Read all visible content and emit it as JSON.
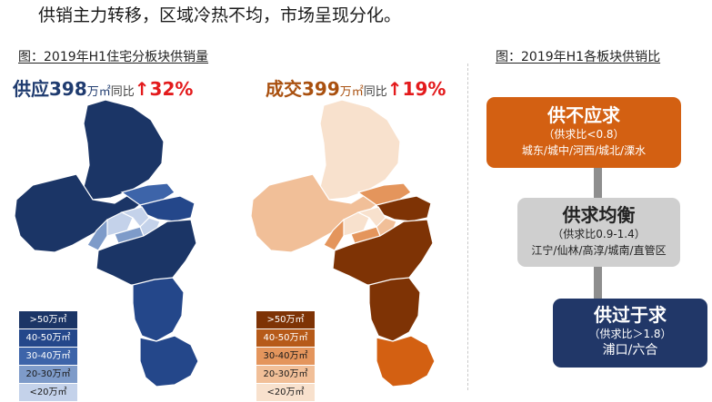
{
  "headline": "供销主力转移，区域冷热不均，市场呈现分化。",
  "figure_left_title": "图：2019年H1住宅分板块供销量",
  "figure_right_title": "图：2019年H1各板块供销比",
  "supply_stat": {
    "label": "供应",
    "value": "398",
    "unit": "万㎡",
    "yoy_label": "同比",
    "arrow": "↑",
    "pct": "32%"
  },
  "deal_stat": {
    "label": "成交",
    "value": "399",
    "unit": "万㎡",
    "yoy_label": "同比",
    "arrow": "↑",
    "pct": "19%"
  },
  "legend_labels": [
    ">50万㎡",
    "40-50万㎡",
    "30-40万㎡",
    "20-30万㎡",
    "<20万㎡"
  ],
  "legend_blue_colors": [
    "#1b3566",
    "#24478a",
    "#3d64a9",
    "#7e9bc9",
    "#c4d2ea"
  ],
  "legend_brown_colors": [
    "#7e3305",
    "#b65a19",
    "#e4955c",
    "#f1bf98",
    "#f8e1cd"
  ],
  "boxes": {
    "undersupply": {
      "title": "供不应求",
      "ratio": "（供求比<0.8）",
      "districts": "城东/城中/河西/城北/溧水",
      "color": "#d36012"
    },
    "balanced": {
      "title": "供求均衡",
      "ratio": "（供求比0.9-1.4）",
      "districts": "江宁/仙林/高淳/城南/直管区",
      "color": "#cfcfcf"
    },
    "oversupply": {
      "title": "供过于求",
      "ratio": "（供求比＞1.8）",
      "districts": "浦口/六合",
      "color": "#213768"
    }
  }
}
